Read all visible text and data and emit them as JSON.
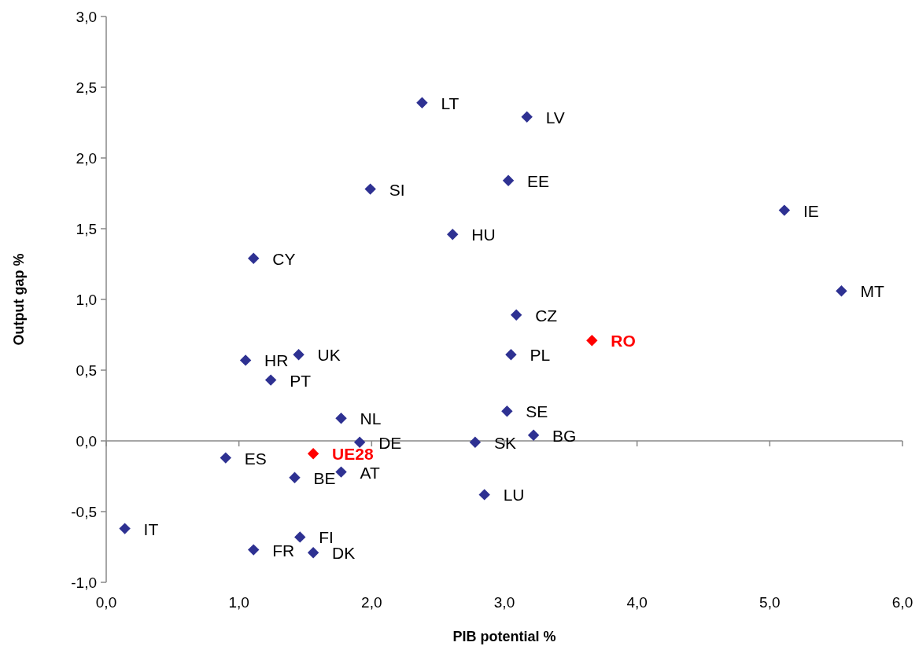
{
  "chart_data": {
    "type": "scatter",
    "xlabel": "PIB potential %",
    "ylabel": "Output gap %",
    "marker": "diamond",
    "xlim": [
      0,
      6
    ],
    "xticks": [
      {
        "value": 0,
        "label": "0,0"
      },
      {
        "value": 1,
        "label": "1,0"
      },
      {
        "value": 2,
        "label": "2,0"
      },
      {
        "value": 3,
        "label": "3,0"
      },
      {
        "value": 4,
        "label": "4,0"
      },
      {
        "value": 5,
        "label": "5,0"
      },
      {
        "value": 6,
        "label": "6,0"
      }
    ],
    "ylim": [
      -1,
      3
    ],
    "yticks": [
      {
        "value": -1,
        "label": "-1,0"
      },
      {
        "value": -0.5,
        "label": "-0,5"
      },
      {
        "value": 0,
        "label": "0,0"
      },
      {
        "value": 0.5,
        "label": "0,5"
      },
      {
        "value": 1,
        "label": "1,0"
      },
      {
        "value": 1.5,
        "label": "1,5"
      },
      {
        "value": 2,
        "label": "2,0"
      },
      {
        "value": 2.5,
        "label": "2,5"
      },
      {
        "value": 3,
        "label": "3,0"
      }
    ],
    "series": [
      {
        "color": "#2e3192",
        "x": [
          2.38,
          3.17,
          3.03,
          1.99,
          5.11,
          2.61,
          1.11,
          5.54,
          3.09,
          1.45,
          1.05,
          3.05,
          1.24,
          3.02,
          1.77,
          1.91,
          3.22,
          2.78,
          0.9,
          1.77,
          1.42,
          2.85,
          0.14,
          1.46,
          1.11,
          1.56
        ],
        "values": [
          2.39,
          2.29,
          1.84,
          1.78,
          1.63,
          1.46,
          1.29,
          1.06,
          0.89,
          0.61,
          0.57,
          0.61,
          0.43,
          0.21,
          0.16,
          -0.01,
          0.04,
          -0.01,
          -0.12,
          -0.22,
          -0.26,
          -0.38,
          -0.62,
          -0.68,
          -0.77,
          -0.79
        ]
      },
      {
        "name": "RO",
        "color": "#ff0000",
        "x": [
          3.66
        ],
        "values": [
          0.71
        ]
      },
      {
        "name": "UE28",
        "color": "#ff0000",
        "x": [
          1.56
        ],
        "values": [
          -0.09
        ]
      }
    ],
    "annotations": [
      {
        "text": "LT",
        "x": 2.38,
        "y": 2.39
      },
      {
        "text": "LV",
        "x": 3.17,
        "y": 2.29
      },
      {
        "text": "EE",
        "x": 3.03,
        "y": 1.84
      },
      {
        "text": "SI",
        "x": 1.99,
        "y": 1.78
      },
      {
        "text": "IE",
        "x": 5.11,
        "y": 1.63
      },
      {
        "text": "HU",
        "x": 2.61,
        "y": 1.46
      },
      {
        "text": "CY",
        "x": 1.11,
        "y": 1.29
      },
      {
        "text": "MT",
        "x": 5.54,
        "y": 1.06
      },
      {
        "text": "CZ",
        "x": 3.09,
        "y": 0.89
      },
      {
        "text": "UK",
        "x": 1.45,
        "y": 0.61
      },
      {
        "text": "HR",
        "x": 1.05,
        "y": 0.57
      },
      {
        "text": "PL",
        "x": 3.05,
        "y": 0.61
      },
      {
        "text": "PT",
        "x": 1.24,
        "y": 0.43
      },
      {
        "text": "SE",
        "x": 3.02,
        "y": 0.21
      },
      {
        "text": "NL",
        "x": 1.77,
        "y": 0.16
      },
      {
        "text": "DE",
        "x": 1.91,
        "y": -0.01
      },
      {
        "text": "BG",
        "x": 3.22,
        "y": 0.04
      },
      {
        "text": "SK",
        "x": 2.78,
        "y": -0.01
      },
      {
        "text": "ES",
        "x": 0.9,
        "y": -0.12
      },
      {
        "text": "AT",
        "x": 1.77,
        "y": -0.22
      },
      {
        "text": "BE",
        "x": 1.42,
        "y": -0.26
      },
      {
        "text": "LU",
        "x": 2.85,
        "y": -0.38
      },
      {
        "text": "IT",
        "x": 0.14,
        "y": -0.62
      },
      {
        "text": "FI",
        "x": 1.46,
        "y": -0.68
      },
      {
        "text": "FR",
        "x": 1.11,
        "y": -0.77
      },
      {
        "text": "DK",
        "x": 1.56,
        "y": -0.79
      }
    ]
  }
}
